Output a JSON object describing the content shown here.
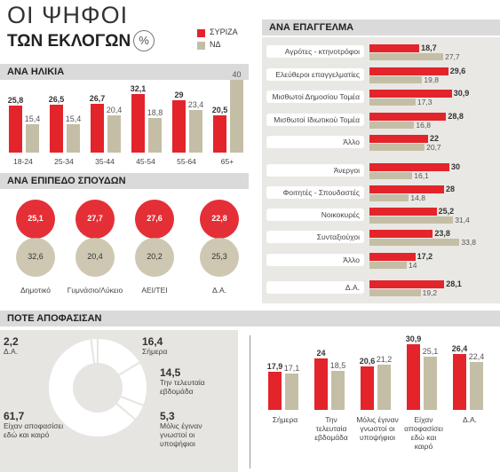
{
  "header": {
    "title_line1": "ΟΙ ΨΗΦΟΙ",
    "title_line2": "ΤΩΝ ΕΚΛΟΓΩΝ",
    "unit": "%"
  },
  "chart_data": [
    {
      "type": "bar",
      "title": "ΑΝΑ ΗΛΙΚΙΑ",
      "categories": [
        "18-24",
        "25-34",
        "35-44",
        "45-54",
        "55-64",
        "65+"
      ],
      "series": [
        {
          "name": "ΣΥΡΙΖΑ",
          "color": "#e3242b",
          "values": [
            25.8,
            26.5,
            26.7,
            32.1,
            29,
            20.5
          ],
          "value_labels": [
            "25,8",
            "26,5",
            "26,7",
            "32,1",
            "29",
            "20,5"
          ]
        },
        {
          "name": "ΝΔ",
          "color": "#c5bea6",
          "values": [
            15.4,
            15.4,
            20.4,
            18.8,
            23.4,
            40
          ],
          "value_labels": [
            "15,4",
            "15,4",
            "20,4",
            "18,8",
            "23,4",
            "40"
          ]
        }
      ]
    },
    {
      "type": "bubble",
      "title": "ΑΝΑ ΕΠΙΠΕΔΟ ΣΠΟΥΔΩΝ",
      "categories": [
        "Δημοτικό",
        "Γυμνάσιο/Λύκειο",
        "ΑΕΙ/ΤΕΙ",
        "Δ.Α."
      ],
      "series": [
        {
          "color": "#e3242b",
          "values": [
            25.1,
            27.7,
            27.6,
            22.8
          ],
          "value_labels": [
            "25,1",
            "27,7",
            "27,6",
            "22,8"
          ]
        },
        {
          "color": "#c5bea6",
          "values": [
            32.6,
            20.4,
            20.2,
            25.3
          ],
          "value_labels": [
            "32,6",
            "20,4",
            "20,2",
            "25,3"
          ]
        }
      ]
    },
    {
      "type": "hbar",
      "title": "ΑΝΑ ΕΠΑΓΓΕΛΜΑ",
      "categories": [
        "Αγρότες - κτηνοτρόφοι",
        "Ελεύθεροι επαγγελματίες",
        "Μισθωτοί Δημοσίου Τομέα",
        "Μισθωτοί Ιδιωτικού Τομέα",
        "Άλλο",
        "Άνεργοι",
        "Φοιτητές - Σπουδαστές",
        "Νοικοκυρές",
        "Συνταξιούχοι",
        "Άλλο",
        "Δ.Α."
      ],
      "series": [
        {
          "color": "#e3242b",
          "values": [
            18.7,
            29.6,
            30.9,
            28.8,
            22,
            30,
            28,
            25.2,
            23.8,
            17.2,
            28.1
          ],
          "value_labels": [
            "18,7",
            "29,6",
            "30,9",
            "28,8",
            "22",
            "30",
            "28",
            "25,2",
            "23,8",
            "17,2",
            "28,1"
          ]
        },
        {
          "color": "#c5bea6",
          "values": [
            27.7,
            19.8,
            17.3,
            16.8,
            20.7,
            16.1,
            14.8,
            31.4,
            33.8,
            14,
            19.2
          ],
          "value_labels": [
            "27,7",
            "19,8",
            "17,3",
            "16,8",
            "20,7",
            "16,1",
            "14,8",
            "31,4",
            "33,8",
            "14",
            "19,2"
          ]
        }
      ]
    },
    {
      "type": "donut",
      "title": "ΠΟΤΕ ΑΠΟΦΑΣΙΣΑΝ",
      "categories": [
        "Δ.Α.",
        "Σήμερα",
        "Την τελευταία εβδομάδα",
        "Μόλις έγιναν γνωστοί οι υποψήφιοι",
        "Είχαν αποφασίσει εδώ και καιρό"
      ],
      "values": [
        2.2,
        16.4,
        14.5,
        5.3,
        61.7
      ],
      "value_labels": [
        "2,2",
        "16,4",
        "14,5",
        "5,3",
        "61,7"
      ]
    },
    {
      "type": "bar",
      "categories": [
        "Σήμερα",
        "Την τελευταία εβδομάδα",
        "Μόλις έγιναν γνωστοί οι υποψήφιοι",
        "Είχαν αποφασίσει εδώ και καιρό",
        "Δ.Α."
      ],
      "series": [
        {
          "color": "#e3242b",
          "values": [
            17.9,
            24,
            20.6,
            30.9,
            26.4
          ],
          "value_labels": [
            "17,9",
            "24",
            "20,6",
            "30,9",
            "26,4"
          ]
        },
        {
          "color": "#c5bea6",
          "values": [
            17.1,
            18.5,
            21.2,
            25.1,
            22.4
          ],
          "value_labels": [
            "17,1",
            "18,5",
            "21,2",
            "25,1",
            "22,4"
          ]
        }
      ]
    }
  ]
}
